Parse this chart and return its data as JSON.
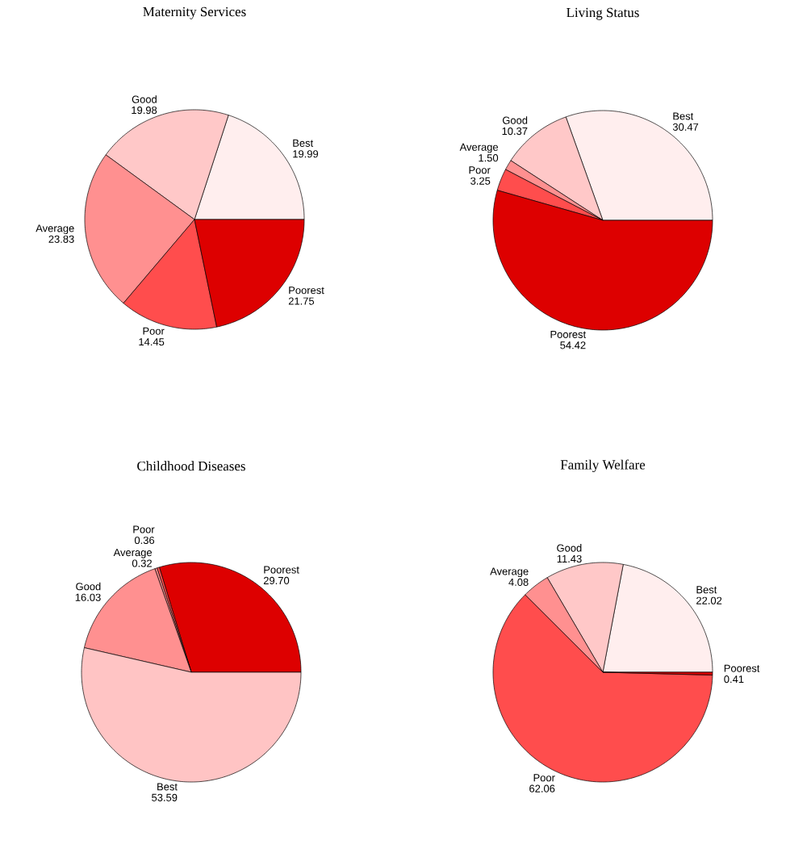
{
  "chart_data": [
    {
      "type": "pie",
      "title": "Maternity Services",
      "categories": [
        "Best",
        "Good",
        "Average",
        "Poor",
        "Poorest"
      ],
      "values": [
        19.99,
        19.98,
        23.83,
        14.45,
        21.75
      ],
      "value_labels": [
        "19.99",
        "19.98",
        "23.83",
        "14.45",
        "21.75"
      ],
      "colors": [
        "#ffeeee",
        "#ffc8c8",
        "#ff9090",
        "#ff4d4d",
        "#dd0000"
      ]
    },
    {
      "type": "pie",
      "title": "Living Status",
      "categories": [
        "Best",
        "Good",
        "Average",
        "Poor",
        "Poorest"
      ],
      "values": [
        30.47,
        10.37,
        1.5,
        3.25,
        54.42
      ],
      "value_labels": [
        "30.47",
        "10.37",
        "1.50",
        "3.25",
        "54.42"
      ],
      "colors": [
        "#ffeeee",
        "#ffc8c8",
        "#ff9090",
        "#ff4d4d",
        "#dd0000"
      ]
    },
    {
      "type": "pie",
      "title": "Childhood Diseases",
      "categories": [
        "Poorest",
        "Poor",
        "Average",
        "Good",
        "Best"
      ],
      "values": [
        29.7,
        0.36,
        0.32,
        16.03,
        53.59
      ],
      "value_labels": [
        "29.70",
        "0.36",
        "0.32",
        "16.03",
        "53.59"
      ],
      "colors": [
        "#dd0000",
        "#ff4d4d",
        "#ff9090",
        "#ff9090",
        "#ffc4c4"
      ]
    },
    {
      "type": "pie",
      "title": "Family Welfare",
      "categories": [
        "Best",
        "Good",
        "Average",
        "Poor",
        "Poorest"
      ],
      "values": [
        22.02,
        11.43,
        4.08,
        62.06,
        0.41
      ],
      "value_labels": [
        "22.02",
        "11.43",
        "4.08",
        "62.06",
        "0.41"
      ],
      "colors": [
        "#ffeeee",
        "#ffc8c8",
        "#ff9090",
        "#ff4d4d",
        "#dd0000"
      ]
    }
  ]
}
